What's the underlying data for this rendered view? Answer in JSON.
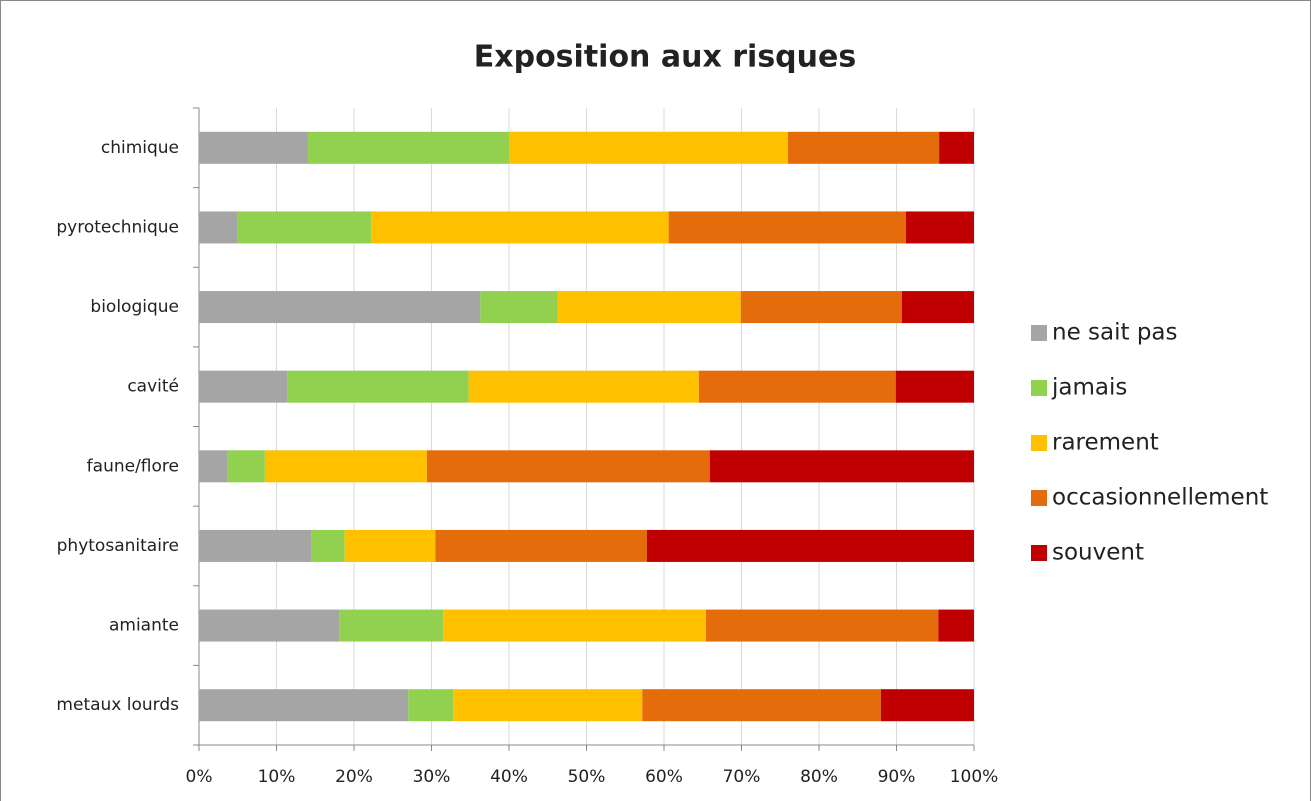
{
  "chart_data": {
    "type": "stacked-bar-horizontal",
    "title": "Exposition aux risques",
    "categories": [
      "chimique",
      "pyrotechnique",
      "biologique",
      "cavité",
      "faune/flore",
      "phytosanitaire",
      "amiante",
      "metaux lourds"
    ],
    "series": [
      {
        "name": "ne sait pas",
        "color": "#a5a5a5",
        "values": [
          14,
          5,
          36.3,
          11.4,
          3.7,
          14.5,
          18.1,
          27
        ]
      },
      {
        "name": "jamais",
        "color": "#92d050",
        "values": [
          26,
          17.2,
          10,
          23.4,
          4.8,
          4.3,
          13.4,
          5.8
        ]
      },
      {
        "name": "rarement",
        "color": "#ffc000",
        "values": [
          36,
          38.4,
          23.6,
          29.7,
          20.9,
          11.7,
          33.9,
          24.4
        ]
      },
      {
        "name": "occasionnellement",
        "color": "#e46c0a",
        "values": [
          19.5,
          30.6,
          20.8,
          25.4,
          36.5,
          27.3,
          30,
          30.8
        ]
      },
      {
        "name": "souvent",
        "color": "#c00000",
        "values": [
          4.5,
          8.8,
          9.3,
          10.1,
          34.1,
          42.2,
          4.6,
          12
        ]
      }
    ],
    "xlim": [
      0,
      100
    ],
    "xticks": [
      {
        "value": 0,
        "label": "0%"
      },
      {
        "value": 10,
        "label": "10%"
      },
      {
        "value": 20,
        "label": "20%"
      },
      {
        "value": 30,
        "label": "30%"
      },
      {
        "value": 40,
        "label": "40%"
      },
      {
        "value": 50,
        "label": "50%"
      },
      {
        "value": 60,
        "label": "60%"
      },
      {
        "value": 70,
        "label": "70%"
      },
      {
        "value": 80,
        "label": "80%"
      },
      {
        "value": 90,
        "label": "90%"
      },
      {
        "value": 100,
        "label": "100%"
      }
    ],
    "grid": true,
    "legend": "right"
  }
}
